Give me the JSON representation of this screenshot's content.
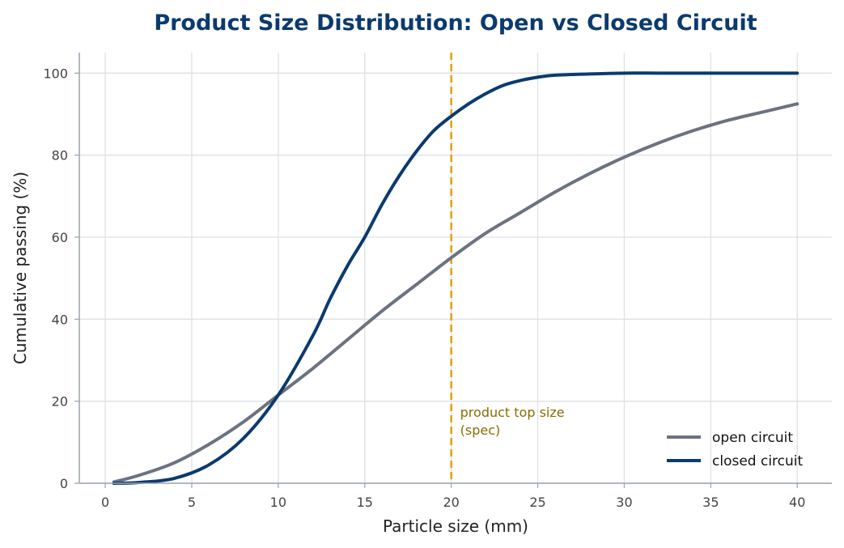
{
  "chart_data": {
    "type": "line",
    "title": "Product Size Distribution: Open vs Closed Circuit",
    "xlabel": "Particle size  (mm)",
    "ylabel": "Cumulative passing  (%)",
    "xlim": [
      -1.5,
      42
    ],
    "ylim": [
      0,
      105
    ],
    "xticks": [
      0,
      5,
      10,
      15,
      20,
      25,
      30,
      35,
      40
    ],
    "yticks": [
      0,
      20,
      40,
      60,
      80,
      100
    ],
    "grid": true,
    "legend_position": "bottom-right",
    "series": [
      {
        "name": "open circuit",
        "color": "#6b7380",
        "x": [
          0.5,
          2,
          4,
          6,
          8,
          10,
          12,
          14,
          16,
          18,
          20,
          22,
          24,
          26,
          28,
          30,
          32,
          34,
          36,
          38,
          40
        ],
        "y": [
          0.3,
          2,
          5,
          9.5,
          15,
          21.5,
          28,
          35,
          42,
          48.5,
          55,
          61,
          66,
          71,
          75.5,
          79.5,
          83,
          86,
          88.5,
          90.5,
          92.5
        ]
      },
      {
        "name": "closed circuit",
        "color": "#0b3a6e",
        "x": [
          0.5,
          2,
          4,
          6,
          8,
          10,
          12,
          13,
          14,
          15,
          16,
          17,
          18,
          19,
          20,
          21,
          22,
          23,
          24,
          25,
          26,
          28,
          30,
          32,
          35,
          40
        ],
        "y": [
          0,
          0.2,
          1.2,
          4.5,
          11,
          21.5,
          36,
          45,
          53,
          60,
          68,
          75,
          81,
          86,
          89.5,
          92.5,
          95,
          97,
          98.2,
          99,
          99.5,
          99.8,
          100,
          100,
          100,
          100
        ]
      }
    ],
    "annotations": [
      {
        "type": "vline",
        "x": 20,
        "color": "#e0a200",
        "style": "dashed",
        "label_lines": [
          "product top size",
          "(spec)"
        ]
      }
    ]
  }
}
